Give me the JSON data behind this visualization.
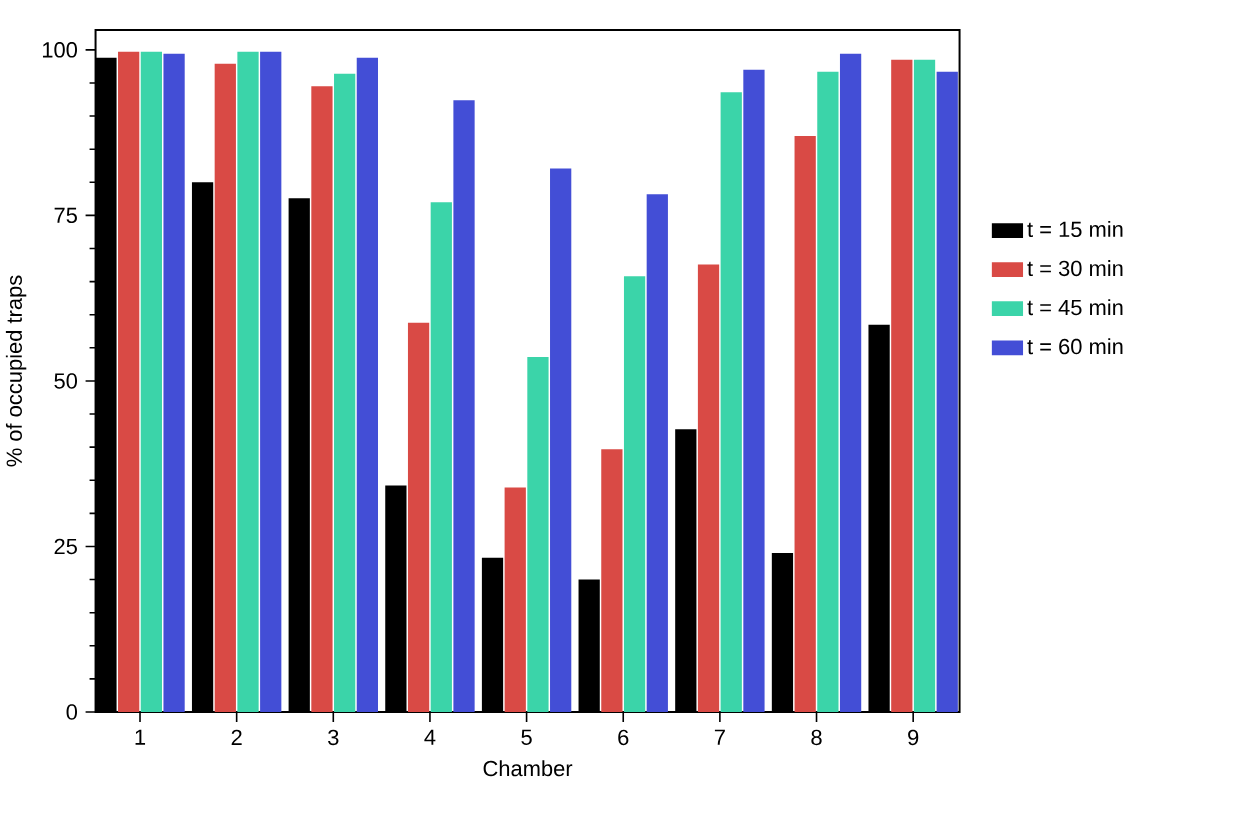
{
  "chart_data": {
    "type": "bar",
    "xlabel": "Chamber",
    "ylabel": "% of occupied traps",
    "categories": [
      "1",
      "2",
      "3",
      "4",
      "5",
      "6",
      "7",
      "8",
      "9"
    ],
    "series": [
      {
        "name": "t = 15 min",
        "color": "#000000",
        "values": [
          98.8,
          80.0,
          77.6,
          34.2,
          23.3,
          20.0,
          42.7,
          24.0,
          58.5
        ]
      },
      {
        "name": "t = 30 min",
        "color": "#d94a45",
        "values": [
          99.7,
          97.9,
          94.5,
          58.8,
          33.9,
          39.7,
          67.6,
          87.0,
          98.5
        ]
      },
      {
        "name": "t = 45 min",
        "color": "#3bd4a9",
        "values": [
          99.7,
          99.7,
          96.4,
          77.0,
          53.6,
          65.8,
          93.6,
          96.7,
          98.5
        ]
      },
      {
        "name": "t = 60 min",
        "color": "#434ed6",
        "values": [
          99.4,
          99.7,
          98.8,
          92.4,
          82.1,
          78.2,
          97.0,
          99.4,
          96.7
        ]
      }
    ],
    "ylim": [
      0,
      103
    ],
    "yticks": [
      0,
      25,
      50,
      75,
      100
    ],
    "grid": false,
    "legend": "right"
  }
}
